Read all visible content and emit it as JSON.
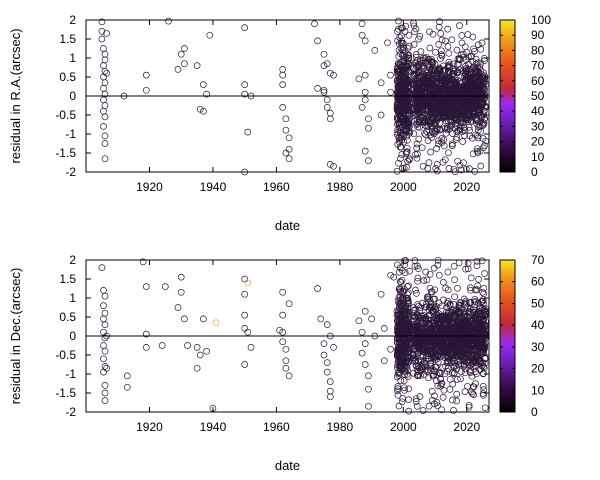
{
  "chart_data": [
    {
      "type": "scatter",
      "xlabel": "date",
      "ylabel": "residual in R.A.(arcsec)",
      "xlim": [
        1900,
        2027
      ],
      "ylim": [
        -2,
        2
      ],
      "xticks": [
        "1920",
        "1940",
        "1960",
        "1980",
        "2000",
        "2020"
      ],
      "yticks": [
        "-2",
        "-1.5",
        "-1",
        "-0.5",
        "0",
        "0.5",
        "1",
        "1.5",
        "2"
      ],
      "colorbar": {
        "min": 0,
        "max": 100,
        "ticks": [
          "0",
          "10",
          "20",
          "30",
          "40",
          "50",
          "60",
          "70",
          "80",
          "90",
          "100"
        ]
      },
      "zero_line": true,
      "marker": "open-circle",
      "points": [
        [
          1905,
          1.95
        ],
        [
          1905,
          1.7
        ],
        [
          1905,
          1.5
        ],
        [
          1905.5,
          1.25
        ],
        [
          1906,
          1.1
        ],
        [
          1906,
          0.95
        ],
        [
          1905.5,
          0.8
        ],
        [
          1906,
          0.65
        ],
        [
          1905.5,
          0.5
        ],
        [
          1906,
          0.35
        ],
        [
          1905.5,
          0.2
        ],
        [
          1906,
          0.05
        ],
        [
          1905.5,
          -0.1
        ],
        [
          1906,
          -0.25
        ],
        [
          1905.5,
          -0.4
        ],
        [
          1906,
          -0.55
        ],
        [
          1905.5,
          -0.8
        ],
        [
          1906,
          -1.05
        ],
        [
          1906,
          -1.25
        ],
        [
          1906,
          -1.65
        ],
        [
          1906.5,
          1.65
        ],
        [
          1906.5,
          0.6
        ],
        [
          1912,
          0.0
        ],
        [
          1919,
          0.55
        ],
        [
          1919,
          0.15
        ],
        [
          1926,
          1.97
        ],
        [
          1929,
          0.7
        ],
        [
          1930,
          1.1
        ],
        [
          1931,
          1.25
        ],
        [
          1931,
          0.85
        ],
        [
          1935,
          0.8
        ],
        [
          1936,
          -0.35
        ],
        [
          1937,
          -0.4
        ],
        [
          1937,
          0.3
        ],
        [
          1939,
          1.6
        ],
        [
          1938,
          0.05
        ],
        [
          1950,
          1.8
        ],
        [
          1950,
          0.3
        ],
        [
          1950,
          0.05
        ],
        [
          1951,
          -0.95
        ],
        [
          1952,
          0.0
        ],
        [
          1950,
          -2.0
        ],
        [
          1962,
          0.7
        ],
        [
          1962,
          0.55
        ],
        [
          1962,
          0.3
        ],
        [
          1962,
          -0.3
        ],
        [
          1963,
          -0.6
        ],
        [
          1963,
          -0.9
        ],
        [
          1964,
          -1.1
        ],
        [
          1964,
          -1.4
        ],
        [
          1964,
          -1.65
        ],
        [
          1963,
          -1.5
        ],
        [
          1972,
          1.9
        ],
        [
          1973,
          1.45
        ],
        [
          1973,
          0.2
        ],
        [
          1975,
          1.1
        ],
        [
          1975,
          0.8
        ],
        [
          1975,
          0.1
        ],
        [
          1976,
          -0.1
        ],
        [
          1976,
          -0.3
        ],
        [
          1977,
          0.6
        ],
        [
          1977,
          -0.45
        ],
        [
          1977,
          -0.6
        ],
        [
          1977,
          -1.8
        ],
        [
          1978,
          -1.85
        ],
        [
          1978,
          0.55
        ],
        [
          1976,
          0.85
        ],
        [
          1975,
          0.15
        ],
        [
          1986,
          0.45
        ],
        [
          1987,
          1.6
        ],
        [
          1987,
          -0.3
        ],
        [
          1988,
          1.45
        ],
        [
          1988,
          0.55
        ],
        [
          1988,
          0.1
        ],
        [
          1988,
          -0.1
        ],
        [
          1989,
          -0.6
        ],
        [
          1989,
          -0.85
        ],
        [
          1988,
          -1.45
        ],
        [
          1989,
          -1.7
        ],
        [
          1987,
          1.9
        ],
        [
          1991,
          1.2
        ],
        [
          1993,
          0.35
        ],
        [
          1993,
          -0.5
        ],
        [
          1995,
          1.4
        ],
        [
          1996,
          0.55
        ],
        [
          1996,
          0.1
        ]
      ],
      "dense_clusters": [
        {
          "x": [
            1998,
            2002
          ],
          "y": [
            -2,
            2
          ],
          "count": 400,
          "sigma": 0.6
        },
        {
          "x": [
            2003,
            2026
          ],
          "y": [
            -2,
            2
          ],
          "count": 1400,
          "sigma": 0.45
        }
      ]
    },
    {
      "type": "scatter",
      "xlabel": "date",
      "ylabel": "residual in Dec.(arcsec)",
      "xlim": [
        1900,
        2027
      ],
      "ylim": [
        -2,
        2
      ],
      "xticks": [
        "1920",
        "1940",
        "1960",
        "1980",
        "2000",
        "2020"
      ],
      "yticks": [
        "-2",
        "-1.5",
        "-1",
        "-0.5",
        "0",
        "0.5",
        "1",
        "1.5",
        "2"
      ],
      "colorbar": {
        "min": 0,
        "max": 70,
        "ticks": [
          "0",
          "10",
          "20",
          "30",
          "40",
          "50",
          "60",
          "70"
        ]
      },
      "zero_line": true,
      "marker": "open-circle",
      "highlighted_points": [
        [
          1941,
          0.35
        ],
        [
          1951,
          1.4
        ]
      ],
      "points": [
        [
          1905,
          1.8
        ],
        [
          1905.5,
          1.2
        ],
        [
          1906,
          1.05
        ],
        [
          1905.5,
          0.8
        ],
        [
          1906,
          0.6
        ],
        [
          1905.5,
          0.45
        ],
        [
          1906,
          0.3
        ],
        [
          1905.5,
          0.1
        ],
        [
          1906,
          -0.05
        ],
        [
          1905.5,
          -0.25
        ],
        [
          1906,
          -0.4
        ],
        [
          1905.5,
          -0.6
        ],
        [
          1906,
          -0.8
        ],
        [
          1905.5,
          -0.95
        ],
        [
          1906,
          -1.3
        ],
        [
          1906,
          -1.5
        ],
        [
          1906,
          -1.7
        ],
        [
          1906.5,
          0.0
        ],
        [
          1906.5,
          -0.85
        ],
        [
          1913,
          -1.05
        ],
        [
          1913,
          -1.35
        ],
        [
          1918,
          1.95
        ],
        [
          1919,
          1.3
        ],
        [
          1919,
          0.05
        ],
        [
          1919,
          -0.3
        ],
        [
          1925,
          1.3
        ],
        [
          1924,
          -0.25
        ],
        [
          1929,
          0.75
        ],
        [
          1930,
          1.55
        ],
        [
          1930,
          1.15
        ],
        [
          1931,
          0.45
        ],
        [
          1932,
          -0.25
        ],
        [
          1935,
          -0.3
        ],
        [
          1935,
          -0.85
        ],
        [
          1936,
          -0.5
        ],
        [
          1937,
          0.45
        ],
        [
          1938,
          -0.4
        ],
        [
          1940,
          -1.9
        ],
        [
          1950,
          1.5
        ],
        [
          1950,
          1.1
        ],
        [
          1950,
          0.55
        ],
        [
          1950,
          0.2
        ],
        [
          1951,
          0.1
        ],
        [
          1952,
          -0.3
        ],
        [
          1950,
          -0.75
        ],
        [
          1961,
          0.15
        ],
        [
          1962,
          0.55
        ],
        [
          1962,
          0.1
        ],
        [
          1962,
          -0.15
        ],
        [
          1963,
          -0.35
        ],
        [
          1963,
          -0.65
        ],
        [
          1963,
          -0.85
        ],
        [
          1964,
          -1.05
        ],
        [
          1964,
          0.85
        ],
        [
          1962,
          1.15
        ],
        [
          1973,
          1.25
        ],
        [
          1974,
          0.45
        ],
        [
          1975,
          -0.2
        ],
        [
          1975,
          -0.5
        ],
        [
          1976,
          -0.7
        ],
        [
          1976,
          -0.95
        ],
        [
          1977,
          -1.2
        ],
        [
          1977,
          -1.45
        ],
        [
          1977,
          -1.6
        ],
        [
          1978,
          -0.3
        ],
        [
          1976,
          0.3
        ],
        [
          1977,
          0.0
        ],
        [
          1986,
          0.4
        ],
        [
          1987,
          0.1
        ],
        [
          1987,
          -0.45
        ],
        [
          1988,
          0.65
        ],
        [
          1988,
          -0.2
        ],
        [
          1988,
          -0.75
        ],
        [
          1989,
          -1.05
        ],
        [
          1989,
          -1.4
        ],
        [
          1989,
          -1.85
        ],
        [
          1990,
          0.45
        ],
        [
          1991,
          0.0
        ],
        [
          1993,
          1.1
        ],
        [
          1994,
          0.2
        ],
        [
          1994,
          -0.65
        ],
        [
          1996,
          1.6
        ],
        [
          1997,
          1.55
        ],
        [
          1996,
          -0.35
        ]
      ],
      "dense_clusters": [
        {
          "x": [
            1998,
            2002
          ],
          "y": [
            -2,
            2
          ],
          "count": 380,
          "sigma": 0.55
        },
        {
          "x": [
            2003,
            2026
          ],
          "y": [
            -2,
            2
          ],
          "count": 1400,
          "sigma": 0.42
        }
      ]
    }
  ]
}
